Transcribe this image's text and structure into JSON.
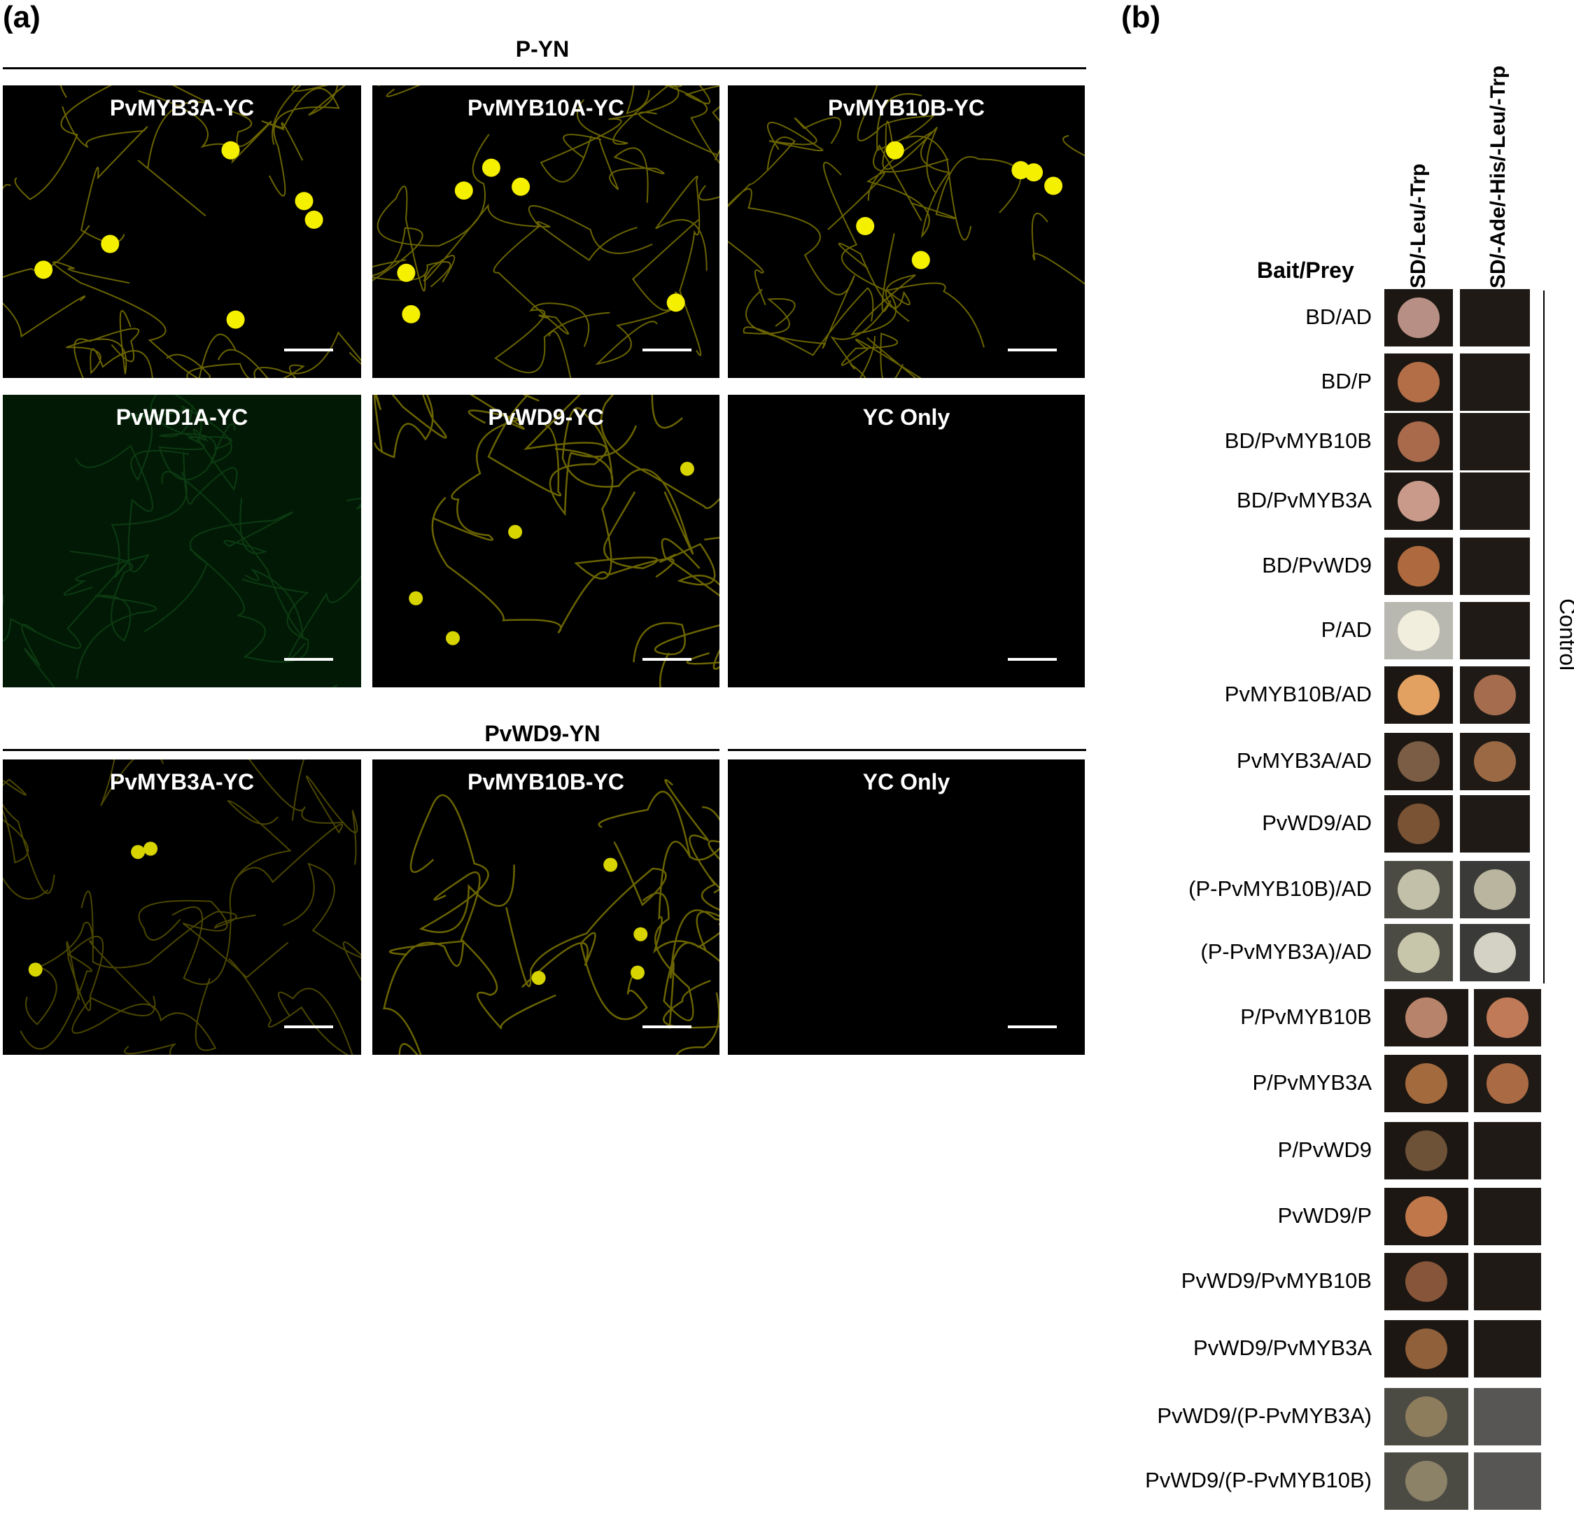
{
  "panel_a": {
    "letter": "(a)",
    "section1_title": "P-YN",
    "section2_title": "PvWD9-YN",
    "row1": [
      {
        "label": "PvMYB3A-YC",
        "signal": "strong"
      },
      {
        "label": "PvMYB10A-YC",
        "signal": "strong"
      },
      {
        "label": "PvMYB10B-YC",
        "signal": "strong"
      }
    ],
    "row2": [
      {
        "label": "PvWD1A-YC",
        "signal": "none-green"
      },
      {
        "label": "PvWD9-YC",
        "signal": "medium"
      },
      {
        "label": "YC Only",
        "signal": "black"
      }
    ],
    "row3": [
      {
        "label": "PvMYB3A-YC",
        "signal": "weak"
      },
      {
        "label": "PvMYB10B-YC",
        "signal": "medium"
      },
      {
        "label": "YC Only",
        "signal": "black"
      }
    ]
  },
  "panel_b": {
    "letter": "(b)",
    "bait_prey_header": "Bait/Prey",
    "col1_header": "SD/-Leu/-Trp",
    "col2_header": "SD/-Ade/-His/-Leu/-Trp",
    "control_label": "Control",
    "rows": [
      {
        "label": "BD/AD",
        "c1": "#b88f84",
        "c2": null
      },
      {
        "label": "BD/P",
        "c1": "#b36e48",
        "c2": null
      },
      {
        "label": "BD/PvMYB10B",
        "c1": "#a86a4b",
        "c2": null
      },
      {
        "label": "BD/PvMYB3A",
        "c1": "#c99a8a",
        "c2": null
      },
      {
        "label": "BD/PvWD9",
        "c1": "#ae6a3e",
        "c2": null
      },
      {
        "label": "P/AD",
        "c1": "#f2eedd",
        "c2": null
      },
      {
        "label": "PvMYB10B/AD",
        "c1": "#e2a061",
        "c2": "#a56d4e"
      },
      {
        "label": "PvMYB3A/AD",
        "c1": "#7a5d44",
        "c2": "#9b6a45"
      },
      {
        "label": "PvWD9/AD",
        "c1": "#7a5234",
        "c2": null
      },
      {
        "label": "(P-PvMYB10B)/AD",
        "c1": "#c2c0a8",
        "c2": "#b9b59e"
      },
      {
        "label": "(P-PvMYB3A)/AD",
        "c1": "#c7c6aa",
        "c2": "#d4d2c4"
      },
      {
        "label": "P/PvMYB10B",
        "c1": "#b7836b",
        "c2": "#c07a58"
      },
      {
        "label": "P/PvMYB3A",
        "c1": "#a36a3e",
        "c2": "#aa6a44"
      },
      {
        "label": "P/PvWD9",
        "c1": "#6d5237",
        "c2": null
      },
      {
        "label": "PvWD9/P",
        "c1": "#c0774a",
        "c2": null
      },
      {
        "label": "PvWD9/PvMYB10B",
        "c1": "#86553a",
        "c2": null
      },
      {
        "label": "PvWD9/PvMYB3A",
        "c1": "#90603b",
        "c2": null
      },
      {
        "label": "PvWD9/(P-PvMYB3A)",
        "c1": "#8e7d5c",
        "c2": null
      },
      {
        "label": "PvWD9/(P-PvMYB10B)",
        "c1": "#8b8268",
        "c2": null
      }
    ]
  }
}
